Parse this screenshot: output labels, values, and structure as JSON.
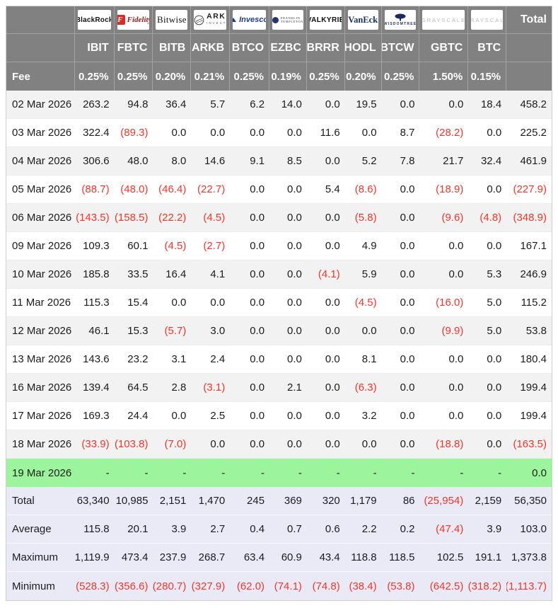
{
  "chart_data": {
    "type": "table",
    "corner_label": "",
    "fee_label": "Fee",
    "total_header": "Total",
    "columns": [
      {
        "brand": "BlackRock",
        "logo": "blackrock",
        "logo_text": [
          "BlackRock"
        ],
        "ticker": "IBIT",
        "fee": "0.25%"
      },
      {
        "brand": "Fidelity",
        "logo": "fidelity",
        "logo_text": [
          "F",
          "Fidelity",
          "INVESTMENTS"
        ],
        "ticker": "FBTC",
        "fee": "0.25%"
      },
      {
        "brand": "Bitwise",
        "logo": "bitwise",
        "logo_text": [
          "Bitwise"
        ],
        "ticker": "BITB",
        "fee": "0.20%"
      },
      {
        "brand": "ARK Invest",
        "logo": "ark",
        "logo_text": [
          "ARK",
          "INVEST"
        ],
        "ticker": "ARKB",
        "fee": "0.21%"
      },
      {
        "brand": "Invesco",
        "logo": "invesco",
        "logo_text": [
          "Invesco"
        ],
        "ticker": "BTCO",
        "fee": "0.25%"
      },
      {
        "brand": "Franklin Templeton",
        "logo": "franklin",
        "logo_text": [
          "FRANKLIN",
          "TEMPLETON"
        ],
        "ticker": "EZBC",
        "fee": "0.19%"
      },
      {
        "brand": "Valkyrie",
        "logo": "valkyrie",
        "logo_text": [
          "VALKYRIE"
        ],
        "ticker": "BRRR",
        "fee": "0.25%"
      },
      {
        "brand": "VanEck",
        "logo": "vaneck",
        "logo_text": [
          "VanEck"
        ],
        "ticker": "HODL",
        "fee": "0.20%"
      },
      {
        "brand": "WisdomTree",
        "logo": "wisdomtree",
        "logo_text": [
          "WISDOMTREE"
        ],
        "ticker": "BTCW",
        "fee": "0.25%"
      },
      {
        "brand": "Grayscale",
        "logo": "grayscale",
        "logo_text": [
          "GRAYSCALE"
        ],
        "ticker": "GBTC",
        "fee": "1.50%"
      },
      {
        "brand": "Grayscale",
        "logo": "grayscale",
        "logo_text": [
          "GRAYSCALE"
        ],
        "ticker": "BTC",
        "fee": "0.15%"
      }
    ],
    "rows": [
      {
        "date": "02 Mar 2026",
        "values": [
          "263.2",
          "94.8",
          "36.4",
          "5.7",
          "6.2",
          "14.0",
          "0.0",
          "19.5",
          "0.0",
          "0.0",
          "18.4",
          "458.2"
        ]
      },
      {
        "date": "03 Mar 2026",
        "values": [
          "322.4",
          "(89.3)",
          "0.0",
          "0.0",
          "0.0",
          "0.0",
          "11.6",
          "0.0",
          "8.7",
          "(28.2)",
          "0.0",
          "225.2"
        ]
      },
      {
        "date": "04 Mar 2026",
        "values": [
          "306.6",
          "48.0",
          "8.0",
          "14.6",
          "9.1",
          "8.5",
          "0.0",
          "5.2",
          "7.8",
          "21.7",
          "32.4",
          "461.9"
        ]
      },
      {
        "date": "05 Mar 2026",
        "values": [
          "(88.7)",
          "(48.0)",
          "(46.4)",
          "(22.7)",
          "0.0",
          "0.0",
          "5.4",
          "(8.6)",
          "0.0",
          "(18.9)",
          "0.0",
          "(227.9)"
        ]
      },
      {
        "date": "06 Mar 2026",
        "values": [
          "(143.5)",
          "(158.5)",
          "(22.2)",
          "(4.5)",
          "0.0",
          "0.0",
          "0.0",
          "(5.8)",
          "0.0",
          "(9.6)",
          "(4.8)",
          "(348.9)"
        ]
      },
      {
        "date": "09 Mar 2026",
        "values": [
          "109.3",
          "60.1",
          "(4.5)",
          "(2.7)",
          "0.0",
          "0.0",
          "0.0",
          "4.9",
          "0.0",
          "0.0",
          "0.0",
          "167.1"
        ]
      },
      {
        "date": "10 Mar 2026",
        "values": [
          "185.8",
          "33.5",
          "16.4",
          "4.1",
          "0.0",
          "0.0",
          "(4.1)",
          "5.9",
          "0.0",
          "0.0",
          "5.3",
          "246.9"
        ]
      },
      {
        "date": "11 Mar 2026",
        "values": [
          "115.3",
          "15.4",
          "0.0",
          "0.0",
          "0.0",
          "0.0",
          "0.0",
          "(4.5)",
          "0.0",
          "(16.0)",
          "5.0",
          "115.2"
        ]
      },
      {
        "date": "12 Mar 2026",
        "values": [
          "46.1",
          "15.3",
          "(5.7)",
          "3.0",
          "0.0",
          "0.0",
          "0.0",
          "0.0",
          "0.0",
          "(9.9)",
          "5.0",
          "53.8"
        ]
      },
      {
        "date": "13 Mar 2026",
        "values": [
          "143.6",
          "23.2",
          "3.1",
          "2.4",
          "0.0",
          "0.0",
          "0.0",
          "8.1",
          "0.0",
          "0.0",
          "0.0",
          "180.4"
        ]
      },
      {
        "date": "16 Mar 2026",
        "values": [
          "139.4",
          "64.5",
          "2.8",
          "(3.1)",
          "0.0",
          "2.1",
          "0.0",
          "(6.3)",
          "0.0",
          "0.0",
          "0.0",
          "199.4"
        ]
      },
      {
        "date": "17 Mar 2026",
        "values": [
          "169.3",
          "24.4",
          "0.0",
          "2.5",
          "0.0",
          "0.0",
          "0.0",
          "3.2",
          "0.0",
          "0.0",
          "0.0",
          "199.4"
        ]
      },
      {
        "date": "18 Mar 2026",
        "values": [
          "(33.9)",
          "(103.8)",
          "(7.0)",
          "0.0",
          "0.0",
          "0.0",
          "0.0",
          "0.0",
          "0.0",
          "(18.8)",
          "0.0",
          "(163.5)"
        ]
      },
      {
        "date": "19 Mar 2026",
        "values": [
          "-",
          "-",
          "-",
          "-",
          "-",
          "-",
          "-",
          "-",
          "-",
          "-",
          "-",
          "0.0"
        ],
        "highlight": "green"
      }
    ],
    "summary": [
      {
        "label": "Total",
        "values": [
          "63,340",
          "10,985",
          "2,151",
          "1,470",
          "245",
          "369",
          "320",
          "1,179",
          "86",
          "(25,954)",
          "2,159",
          "56,350"
        ]
      },
      {
        "label": "Average",
        "values": [
          "115.8",
          "20.1",
          "3.9",
          "2.7",
          "0.4",
          "0.7",
          "0.6",
          "2.2",
          "0.2",
          "(47.4)",
          "3.9",
          "103.0"
        ]
      },
      {
        "label": "Maximum",
        "values": [
          "1,119.9",
          "473.4",
          "237.9",
          "268.7",
          "63.4",
          "60.9",
          "43.4",
          "118.8",
          "118.5",
          "102.5",
          "191.1",
          "1,373.8"
        ]
      },
      {
        "label": "Minimum",
        "values": [
          "(528.3)",
          "(356.6)",
          "(280.7)",
          "(327.9)",
          "(62.0)",
          "(74.1)",
          "(74.8)",
          "(38.4)",
          "(53.8)",
          "(642.5)",
          "(318.2)",
          "(1,113.7)"
        ]
      }
    ],
    "colors": {
      "header_bg": "#818181",
      "header_text": "#ffffff",
      "negative": "#f5342a",
      "green_row": "#9cf59c",
      "summary_bg": "#eaeaf6",
      "stripe": "#f2f2f2"
    }
  }
}
